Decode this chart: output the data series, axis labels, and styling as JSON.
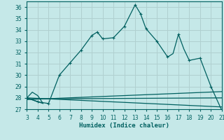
{
  "xlabel": "Humidex (Indice chaleur)",
  "bg_color": "#c5e8e8",
  "grid_color": "#b0d0d0",
  "line_color": "#006060",
  "xlim": [
    3,
    21
  ],
  "ylim": [
    27,
    36.5
  ],
  "yticks": [
    27,
    28,
    29,
    30,
    31,
    32,
    33,
    34,
    35,
    36
  ],
  "xticks": [
    3,
    4,
    5,
    6,
    7,
    8,
    9,
    10,
    11,
    12,
    13,
    14,
    15,
    16,
    17,
    18,
    19,
    20,
    21
  ],
  "main_line_x": [
    3,
    4,
    5,
    6,
    7,
    8,
    9,
    9.5,
    10,
    11,
    12,
    13,
    13.5,
    14,
    15,
    16,
    16.5,
    17,
    17.5,
    18,
    19,
    20,
    21
  ],
  "main_line_y": [
    28.0,
    27.65,
    27.5,
    30.0,
    31.1,
    32.2,
    33.5,
    33.8,
    33.2,
    33.3,
    34.3,
    36.2,
    35.4,
    34.1,
    33.0,
    31.6,
    31.9,
    33.6,
    32.3,
    31.3,
    31.5,
    29.0,
    26.9
  ],
  "markers_x": [
    3,
    4,
    5,
    6,
    7,
    8,
    9,
    9.5,
    10,
    11,
    12,
    13,
    13.5,
    14,
    15,
    16,
    17,
    18,
    19,
    20,
    21
  ],
  "markers_y": [
    28.0,
    27.65,
    27.5,
    30.0,
    31.1,
    32.2,
    33.5,
    33.8,
    33.2,
    33.3,
    34.3,
    36.2,
    35.4,
    34.1,
    33.0,
    31.6,
    33.6,
    31.3,
    31.5,
    29.0,
    26.9
  ],
  "flat_line1_x": [
    3,
    21
  ],
  "flat_line1_y": [
    27.85,
    28.55
  ],
  "flat_line2_x": [
    3,
    21
  ],
  "flat_line2_y": [
    27.9,
    28.0
  ],
  "flat_line3_x": [
    3,
    21
  ],
  "flat_line3_y": [
    28.0,
    27.2
  ],
  "triangle_x": [
    3,
    3.5,
    4,
    4.5,
    3
  ],
  "triangle_y": [
    28.0,
    28.5,
    28.2,
    27.5,
    28.0
  ]
}
